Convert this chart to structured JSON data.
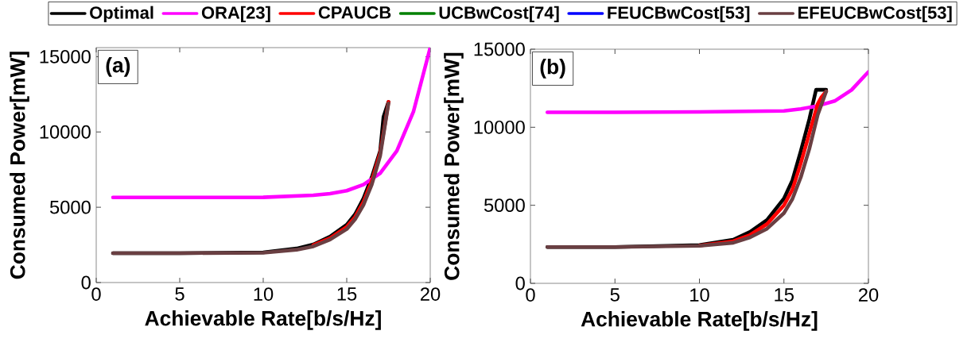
{
  "chart_data": [
    {
      "type": "line",
      "xlabel": "Achievable Rate[b/s/Hz]",
      "ylabel": "Consumed Power[mW]",
      "annotations": [
        "(a)"
      ],
      "xlim": [
        0,
        20
      ],
      "ylim": [
        0,
        15600
      ],
      "xticks": [
        0,
        5,
        10,
        15,
        20
      ],
      "yticks": [
        0,
        5000,
        10000,
        15000
      ],
      "legend": "top",
      "marker": "none",
      "line_style": "solid",
      "series": [
        {
          "name": "Optimal",
          "color": "#000000",
          "x": [
            1,
            5,
            10,
            12,
            13,
            14,
            15,
            15.5,
            16,
            16.5,
            17,
            17.2,
            17.5
          ],
          "values": [
            1950,
            1950,
            2000,
            2260,
            2530,
            3050,
            3840,
            4530,
            5580,
            7000,
            8740,
            11000,
            12000
          ]
        },
        {
          "name": "ORA[23]",
          "color": "#ff00ff",
          "x": [
            1,
            5,
            10,
            13,
            14,
            15,
            16,
            17,
            18,
            19,
            20
          ],
          "values": [
            5650,
            5650,
            5660,
            5800,
            5900,
            6100,
            6500,
            7250,
            8740,
            11370,
            15600
          ]
        },
        {
          "name": "CPAUCB",
          "color": "#ff0000",
          "x": [
            13,
            14,
            15,
            15.5,
            16,
            16.5,
            17,
            17.3,
            17.5
          ],
          "values": [
            2480,
            2950,
            3700,
            4350,
            5350,
            6750,
            8600,
            10600,
            12000
          ]
        },
        {
          "name": "UCBwCost[74]",
          "color": "#008000"
        },
        {
          "name": "FEUCBwCost[53]",
          "color": "#0000ff"
        },
        {
          "name": "EFEUCBwCost[53]",
          "color": "#6a3f42",
          "x": [
            1,
            5,
            10,
            12,
            13,
            14,
            15,
            15.5,
            16,
            16.5,
            17,
            17.5
          ],
          "values": [
            1950,
            1950,
            1980,
            2180,
            2400,
            2850,
            3550,
            4200,
            5150,
            6500,
            8400,
            11900
          ]
        }
      ]
    },
    {
      "type": "line",
      "xlabel": "Achievable Rate[b/s/Hz]",
      "ylabel": "Consumed Power[mW]",
      "annotations": [
        "(b)"
      ],
      "xlim": [
        0,
        20
      ],
      "ylim": [
        0,
        15000
      ],
      "xticks": [
        0,
        5,
        10,
        15,
        20
      ],
      "yticks": [
        0,
        5000,
        10000,
        15000
      ],
      "marker": "none",
      "line_style": "solid",
      "series": [
        {
          "color": "#000000",
          "x": [
            1,
            5,
            10,
            12,
            13,
            14,
            15,
            15.5,
            16,
            16.5,
            16.9,
            17.5
          ],
          "values": [
            2330,
            2330,
            2450,
            2790,
            3300,
            4060,
            5430,
            6600,
            8480,
            10510,
            12400,
            12400
          ]
        },
        {
          "color": "#ff00ff",
          "x": [
            1,
            5,
            10,
            15,
            16,
            17,
            18,
            19,
            20
          ],
          "values": [
            10960,
            10960,
            10980,
            11050,
            11170,
            11370,
            11680,
            12390,
            13550
          ]
        },
        {
          "color": "#ff0000",
          "x": [
            10,
            12,
            13,
            14,
            15,
            15.5,
            16,
            16.5,
            17,
            17.2,
            17.5
          ],
          "values": [
            2420,
            2700,
            3100,
            3800,
            5000,
            6000,
            7700,
            9600,
            11500,
            11900,
            12300
          ]
        },
        {
          "color": "#6a3f42",
          "x": [
            1,
            5,
            10,
            12,
            13,
            14,
            15,
            15.5,
            16,
            16.5,
            17,
            17.5
          ],
          "values": [
            2330,
            2330,
            2400,
            2600,
            2950,
            3500,
            4500,
            5400,
            6800,
            8600,
            10800,
            12300
          ]
        }
      ]
    }
  ]
}
